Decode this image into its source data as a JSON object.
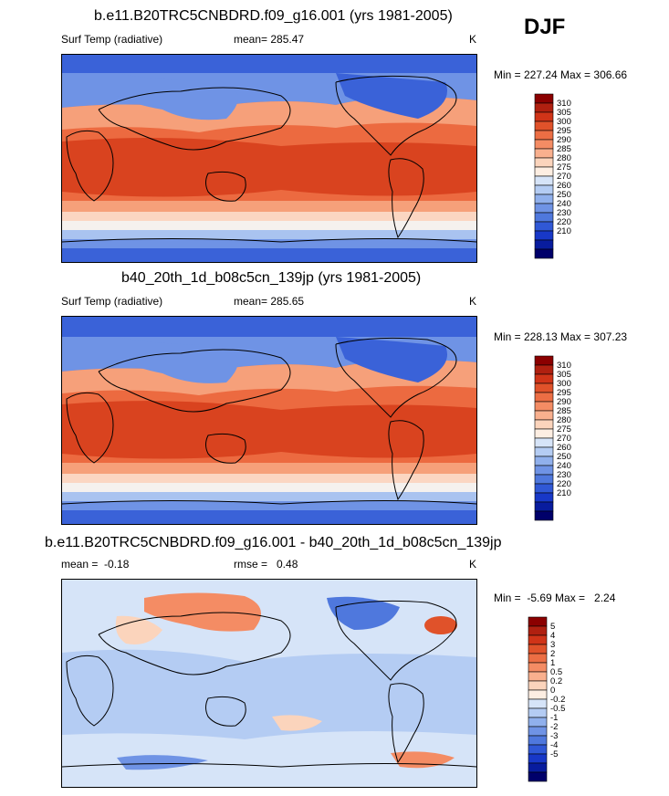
{
  "season": "DJF",
  "panels": [
    {
      "id": "model1",
      "title": "b.e11.B20TRC5CNBDRD.f09_g16.001 (yrs 1981-2005)",
      "left_label": "Surf Temp (radiative)",
      "center_label": "mean= 285.47",
      "unit": "K",
      "minmax": "Min = 227.24 Max = 306.66",
      "colorbar_levels": [
        "310",
        "305",
        "300",
        "295",
        "290",
        "285",
        "280",
        "275",
        "270",
        "260",
        "250",
        "240",
        "230",
        "220",
        "210"
      ],
      "colorbar_colors": [
        "#8b0000",
        "#b02010",
        "#d03418",
        "#e0522a",
        "#ec6e44",
        "#f48c64",
        "#f9b08e",
        "#fbd4bc",
        "#fdeee2",
        "#d6e4f8",
        "#b4ccf3",
        "#90b0ec",
        "#6f93e5",
        "#4f78dd",
        "#3058d6",
        "#1838c8",
        "#081c9e",
        "#00006a"
      ]
    },
    {
      "id": "model2",
      "title": "b40_20th_1d_b08c5cn_139jp (yrs 1981-2005)",
      "left_label": "Surf Temp (radiative)",
      "center_label": "mean= 285.65",
      "unit": "K",
      "minmax": "Min = 228.13 Max = 307.23",
      "colorbar_levels": [
        "310",
        "305",
        "300",
        "295",
        "290",
        "285",
        "280",
        "275",
        "270",
        "260",
        "250",
        "240",
        "230",
        "220",
        "210"
      ],
      "colorbar_colors": [
        "#8b0000",
        "#b02010",
        "#d03418",
        "#e0522a",
        "#ec6e44",
        "#f48c64",
        "#f9b08e",
        "#fbd4bc",
        "#fdeee2",
        "#d6e4f8",
        "#b4ccf3",
        "#90b0ec",
        "#6f93e5",
        "#4f78dd",
        "#3058d6",
        "#1838c8",
        "#081c9e",
        "#00006a"
      ]
    },
    {
      "id": "diff",
      "title": "b.e11.B20TRC5CNBDRD.f09_g16.001 - b40_20th_1d_b08c5cn_139jp",
      "left_label": "mean =  -0.18",
      "center_label": "rmse =   0.48",
      "unit": "K",
      "minmax": "Min =  -5.69 Max =   2.24",
      "colorbar_levels": [
        "5",
        "4",
        "3",
        "2",
        "1",
        "0.5",
        "0.2",
        "0",
        "-0.2",
        "-0.5",
        "-1",
        "-2",
        "-3",
        "-4",
        "-5"
      ],
      "colorbar_colors": [
        "#8b0000",
        "#b02010",
        "#d03418",
        "#e0522a",
        "#ec6e44",
        "#f48c64",
        "#f9b08e",
        "#fbd4bc",
        "#fdeee2",
        "#d6e4f8",
        "#b4ccf3",
        "#90b0ec",
        "#6f93e5",
        "#4f78dd",
        "#3058d6",
        "#1838c8",
        "#081c9e",
        "#00006a"
      ]
    }
  ],
  "map_colors": {
    "hot": "#d9431f",
    "warm": "#ec6a40",
    "mild": "#f6a07a",
    "cool": "#fbd6c2",
    "neutral": "#f5f1ee",
    "cold1": "#a9c3f0",
    "cold2": "#6f93e5",
    "cold3": "#3a62d8",
    "coast": "#000000"
  }
}
